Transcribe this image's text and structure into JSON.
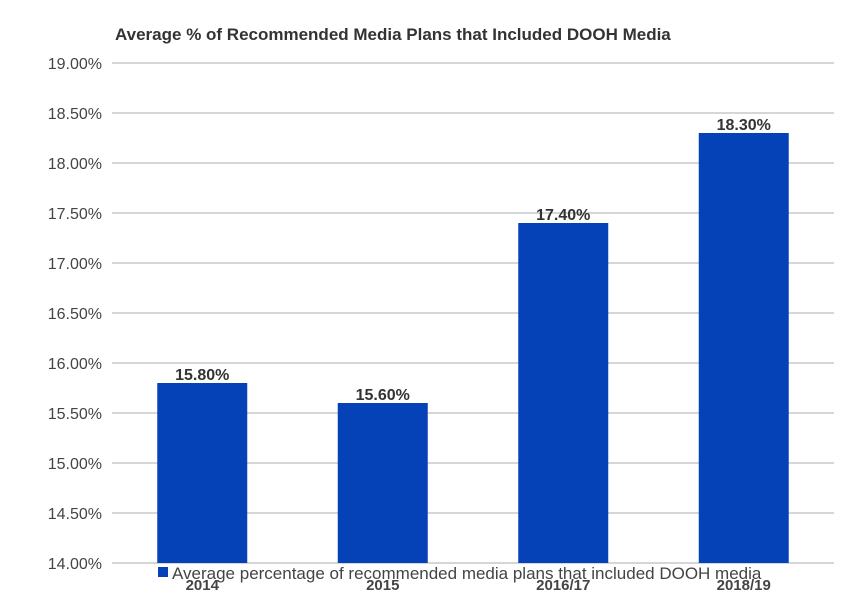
{
  "chart_data": {
    "type": "bar",
    "title": "Average % of Recommended Media Plans that Included DOOH Media",
    "categories": [
      "2014",
      "2015",
      "2016/17",
      "2018/19"
    ],
    "series": [
      {
        "name": "Average percentage of recommended media plans that included DOOH media",
        "values": [
          15.8,
          15.6,
          17.4,
          18.3
        ],
        "labels": [
          "15.80%",
          "15.60%",
          "17.40%",
          "18.30%"
        ],
        "color": "#0542B8"
      }
    ],
    "ylim": [
      14.0,
      19.0
    ],
    "yticks": [
      {
        "value": 14.0,
        "label": "14.00%"
      },
      {
        "value": 14.5,
        "label": "14.50%"
      },
      {
        "value": 15.0,
        "label": "15.00%"
      },
      {
        "value": 15.5,
        "label": "15.50%"
      },
      {
        "value": 16.0,
        "label": "16.00%"
      },
      {
        "value": 16.5,
        "label": "16.50%"
      },
      {
        "value": 17.0,
        "label": "17.00%"
      },
      {
        "value": 17.5,
        "label": "17.50%"
      },
      {
        "value": 18.0,
        "label": "18.00%"
      },
      {
        "value": 18.5,
        "label": "18.50%"
      },
      {
        "value": 19.0,
        "label": "19.00%"
      }
    ],
    "xlabel": "",
    "ylabel": "",
    "grid": true,
    "legend_position": "bottom",
    "gridline_color": "#C8C8C8"
  }
}
